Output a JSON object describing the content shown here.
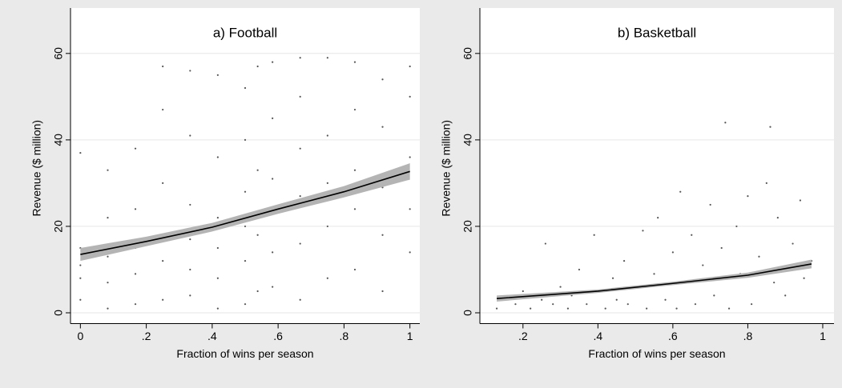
{
  "chart_data": [
    {
      "type": "scatter",
      "title": "a) Football",
      "xlabel": "Fraction of wins per season",
      "ylabel": "Revenue ($ million)",
      "xlim": [
        -0.03,
        1.03
      ],
      "ylim": [
        -2.5,
        62
      ],
      "xticks": [
        0,
        {
          "value": 0.2,
          "label": ".2"
        },
        {
          "value": 0.4,
          "label": ".4"
        },
        {
          "value": 0.6,
          "label": ".6"
        },
        {
          "value": 0.8,
          "label": ".8"
        },
        1
      ],
      "yticks": [
        0,
        20,
        40,
        60
      ],
      "grid": true,
      "points": {
        "color": "#555555",
        "x": [
          0,
          0,
          0,
          0,
          0,
          0.083,
          0.083,
          0.083,
          0.083,
          0.083,
          0.167,
          0.167,
          0.167,
          0.167,
          0.167,
          0.25,
          0.25,
          0.25,
          0.25,
          0.25,
          0.25,
          0.333,
          0.333,
          0.333,
          0.333,
          0.333,
          0.333,
          0.417,
          0.417,
          0.417,
          0.417,
          0.417,
          0.417,
          0.5,
          0.5,
          0.5,
          0.5,
          0.5,
          0.5,
          0.538,
          0.538,
          0.538,
          0.538,
          0.583,
          0.583,
          0.583,
          0.583,
          0.583,
          0.583,
          0.667,
          0.667,
          0.667,
          0.667,
          0.667,
          0.667,
          0.75,
          0.75,
          0.75,
          0.75,
          0.75,
          0.833,
          0.833,
          0.833,
          0.833,
          0.833,
          0.917,
          0.917,
          0.917,
          0.917,
          0.917,
          1,
          1,
          1,
          1,
          1
        ],
        "y": [
          3,
          8,
          11,
          15,
          37,
          1,
          7,
          13,
          22,
          33,
          2,
          9,
          15,
          24,
          38,
          3,
          12,
          18,
          30,
          47,
          57,
          4,
          10,
          17,
          25,
          41,
          56,
          1,
          8,
          15,
          22,
          36,
          55,
          2,
          12,
          20,
          28,
          40,
          52,
          5,
          18,
          33,
          57,
          6,
          14,
          23,
          31,
          45,
          58,
          3,
          16,
          27,
          38,
          50,
          59,
          8,
          20,
          30,
          41,
          59,
          10,
          24,
          33,
          47,
          58,
          5,
          18,
          29,
          43,
          54,
          14,
          24,
          36,
          50,
          57
        ]
      },
      "fit": {
        "color": "#000000",
        "band_color": "#b4b4b4",
        "x": [
          0,
          0.2,
          0.4,
          0.6,
          0.8,
          1
        ],
        "y": [
          13.5,
          16.5,
          19.8,
          24,
          28,
          32.7
        ],
        "lower": [
          12,
          15.4,
          18.8,
          22.9,
          26.7,
          30.8
        ],
        "upper": [
          15,
          17.6,
          20.8,
          25.1,
          29.3,
          34.6
        ]
      }
    },
    {
      "type": "scatter",
      "title": "b) Basketball",
      "xlabel": "Fraction of wins per season",
      "ylabel": "Revenue ($ million)",
      "xlim": [
        0.085,
        1.03
      ],
      "ylim": [
        -2.5,
        62
      ],
      "xticks": [
        {
          "value": 0.2,
          "label": ".2"
        },
        {
          "value": 0.4,
          "label": ".4"
        },
        {
          "value": 0.6,
          "label": ".6"
        },
        {
          "value": 0.8,
          "label": ".8"
        },
        1
      ],
      "yticks": [
        0,
        20,
        40,
        60
      ],
      "grid": true,
      "points": {
        "color": "#555555",
        "x": [
          0.13,
          0.15,
          0.18,
          0.2,
          0.22,
          0.25,
          0.26,
          0.28,
          0.3,
          0.32,
          0.33,
          0.35,
          0.37,
          0.39,
          0.4,
          0.42,
          0.44,
          0.45,
          0.47,
          0.48,
          0.5,
          0.52,
          0.53,
          0.55,
          0.56,
          0.58,
          0.6,
          0.61,
          0.62,
          0.64,
          0.65,
          0.66,
          0.68,
          0.7,
          0.71,
          0.73,
          0.74,
          0.75,
          0.77,
          0.78,
          0.8,
          0.81,
          0.83,
          0.85,
          0.86,
          0.87,
          0.88,
          0.9,
          0.92,
          0.94,
          0.95,
          0.97
        ],
        "y": [
          1,
          3,
          2,
          5,
          1,
          3,
          16,
          2,
          6,
          1,
          4,
          10,
          2,
          18,
          5,
          1,
          8,
          3,
          12,
          2,
          6,
          19,
          1,
          9,
          22,
          3,
          14,
          1,
          28,
          7,
          18,
          2,
          11,
          25,
          4,
          15,
          44,
          1,
          20,
          9,
          27,
          2,
          13,
          30,
          43,
          7,
          22,
          4,
          16,
          26,
          8,
          12
        ]
      },
      "fit": {
        "color": "#000000",
        "band_color": "#b4b4b4",
        "x": [
          0.13,
          0.4,
          0.6,
          0.8,
          0.97
        ],
        "y": [
          3.3,
          5,
          6.8,
          8.7,
          11.3
        ],
        "lower": [
          2.6,
          4.6,
          6.4,
          8.1,
          10.3
        ],
        "upper": [
          4,
          5.4,
          7.2,
          9.3,
          12.3
        ]
      }
    }
  ]
}
